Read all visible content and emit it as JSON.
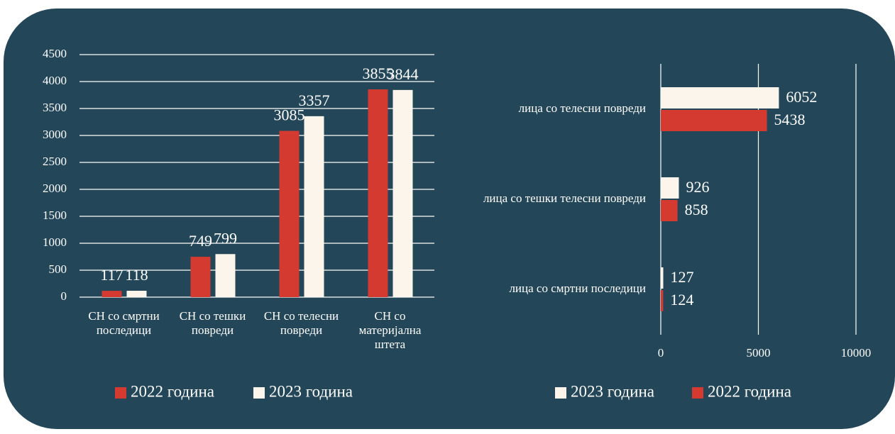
{
  "charts": [
    {
      "type": "bar",
      "categories": [
        "СН со смртни последици",
        "СН со тешки повреди",
        "СН со телесни повреди",
        "СН со материјална штета"
      ],
      "series": [
        {
          "name": "2022 година",
          "color": "#d43a30",
          "values": [
            117,
            749,
            3085,
            3855
          ]
        },
        {
          "name": "2023 година",
          "color": "#fcf5ec",
          "values": [
            118,
            799,
            3357,
            3844
          ]
        }
      ],
      "ylim": [
        0,
        4500
      ],
      "yticks": [
        0,
        500,
        1000,
        1500,
        2000,
        2500,
        3000,
        3500,
        4000,
        4500
      ],
      "grid": true,
      "legend": "bottom"
    },
    {
      "type": "hbar",
      "categories": [
        "лица со телесни повреди",
        "лица со тешки телесни повреди",
        "лица со смртни последици"
      ],
      "series": [
        {
          "name": "2023 година",
          "color": "#fcf5ec",
          "values": [
            6052,
            926,
            127
          ]
        },
        {
          "name": "2022 година",
          "color": "#d43a30",
          "values": [
            5438,
            858,
            124
          ]
        }
      ],
      "xlim": [
        0,
        10000
      ],
      "xticks": [
        0,
        5000,
        10000
      ],
      "grid": true,
      "legend": "bottom"
    }
  ]
}
